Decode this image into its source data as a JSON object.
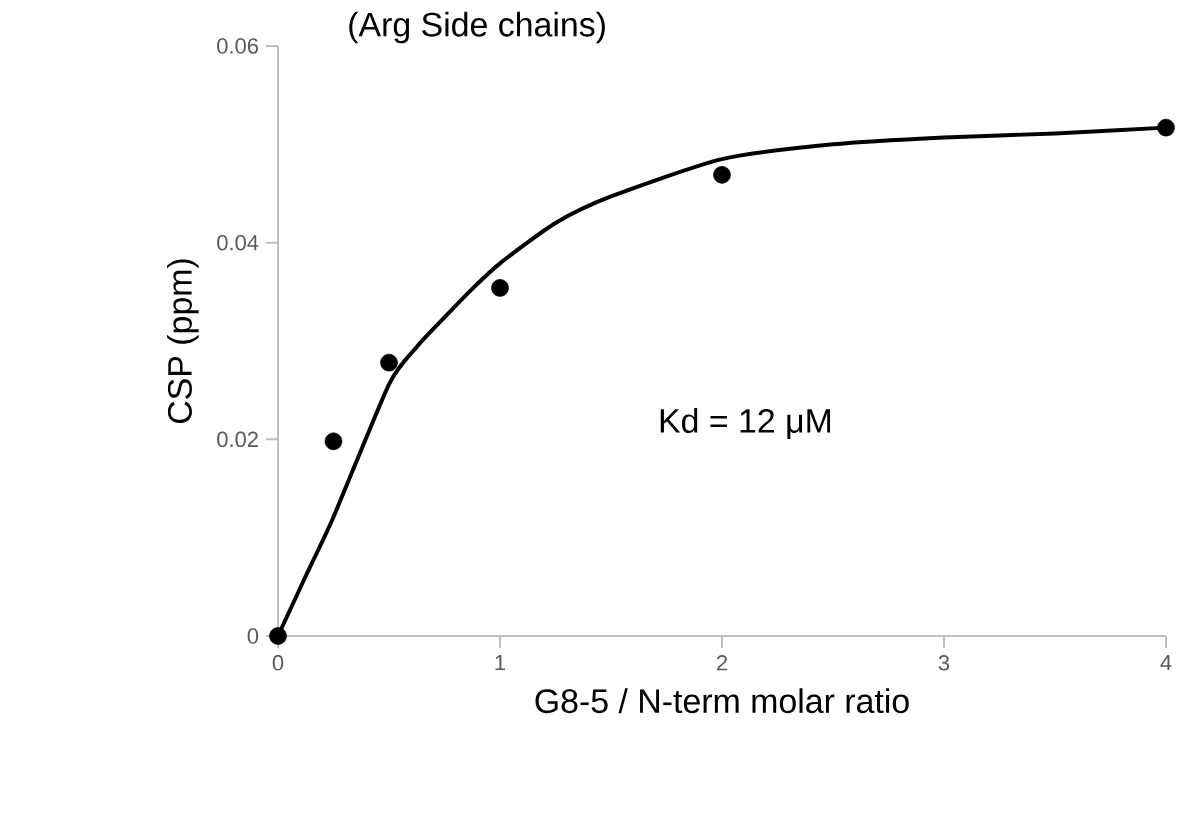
{
  "chart_data": {
    "type": "scatter",
    "title": "(Arg Side chains)",
    "xlabel": "G8-5 / N-term molar ratio",
    "ylabel": "CSP (ppm)",
    "annotations": [
      "Kd = 12 μM"
    ],
    "xlim": [
      0,
      4
    ],
    "ylim": [
      0,
      0.06
    ],
    "xticks": [
      0,
      1,
      2,
      3,
      4
    ],
    "yticks": [
      0,
      0.02,
      0.04,
      0.06
    ],
    "grid": false,
    "series": [
      {
        "marker": "circle",
        "color": "#000000",
        "x": [
          0,
          0.25,
          0.5,
          1,
          2,
          4
        ],
        "values": [
          0,
          0.0198,
          0.0278,
          0.0354,
          0.0469,
          0.0517
        ]
      },
      {
        "type": "line",
        "marker": "none",
        "line_style": "solid",
        "color": "#000000",
        "x": [
          0,
          0.125,
          0.25,
          0.5,
          0.625,
          0.75,
          0.875,
          1,
          1.25,
          1.5,
          2,
          2.5,
          3,
          3.5,
          4
        ],
        "values": [
          0,
          0.0061,
          0.0121,
          0.0256,
          0.0294,
          0.0324,
          0.0353,
          0.0379,
          0.042,
          0.0447,
          0.0485,
          0.05,
          0.0507,
          0.0511,
          0.0517
        ]
      }
    ]
  }
}
